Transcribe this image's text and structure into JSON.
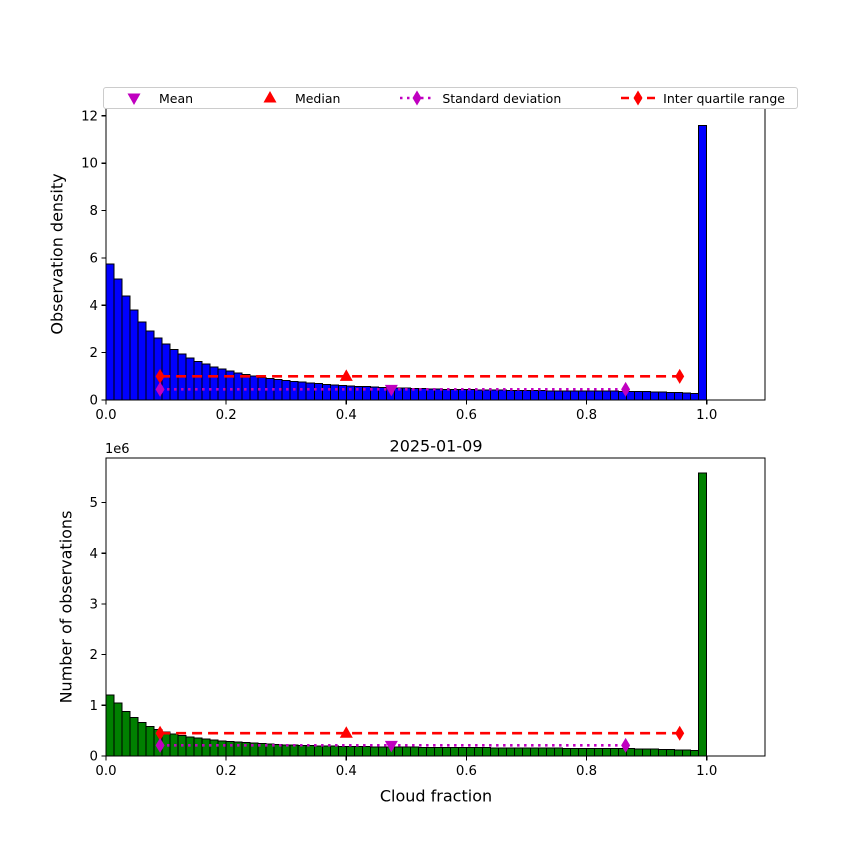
{
  "legend": {
    "items": [
      {
        "key": "mean",
        "label": "Mean",
        "marker": "triangle-down",
        "line": "none",
        "color": "#c000c0"
      },
      {
        "key": "median",
        "label": "Median",
        "marker": "triangle-up",
        "line": "none",
        "color": "#ff0000"
      },
      {
        "key": "std",
        "label": "Standard deviation",
        "marker": "thin-diamond",
        "line": "dotted",
        "color": "#c000c0"
      },
      {
        "key": "iqr",
        "label": "Inter quartile range",
        "marker": "thin-diamond",
        "line": "dashed",
        "color": "#ff0000"
      }
    ]
  },
  "chart_data": [
    {
      "type": "bar",
      "title": "",
      "xlabel": "",
      "ylabel": "Observation density",
      "bar_color": "#0000ff",
      "edge_color": "#000000",
      "bin_start": 0.0,
      "bin_width": 0.0133333,
      "values": [
        5.75,
        5.1,
        4.4,
        3.8,
        3.3,
        2.92,
        2.62,
        2.36,
        2.13,
        1.94,
        1.77,
        1.63,
        1.51,
        1.4,
        1.31,
        1.22,
        1.14,
        1.07,
        1.01,
        0.95,
        0.9,
        0.86,
        0.82,
        0.78,
        0.75,
        0.72,
        0.69,
        0.66,
        0.64,
        0.62,
        0.6,
        0.58,
        0.56,
        0.54,
        0.53,
        0.52,
        0.51,
        0.5,
        0.49,
        0.48,
        0.47,
        0.46,
        0.45,
        0.45,
        0.44,
        0.44,
        0.43,
        0.43,
        0.42,
        0.42,
        0.41,
        0.41,
        0.4,
        0.4,
        0.4,
        0.39,
        0.39,
        0.39,
        0.38,
        0.38,
        0.38,
        0.37,
        0.37,
        0.37,
        0.36,
        0.36,
        0.35,
        0.35,
        0.34,
        0.33,
        0.32,
        0.31,
        0.29,
        0.27,
        11.6
      ],
      "xlim": [
        0,
        1.097
      ],
      "ylim": [
        0,
        12.33
      ],
      "xticks": [
        0.0,
        0.2,
        0.4,
        0.6,
        0.8,
        1.0
      ],
      "xtick_labels": [
        "0.0",
        "0.2",
        "0.4",
        "0.6",
        "0.8",
        "1.0"
      ],
      "yticks": [
        0,
        2,
        4,
        6,
        8,
        10,
        12
      ],
      "ytick_labels": [
        "0",
        "2",
        "4",
        "6",
        "8",
        "10",
        "12"
      ],
      "grid": false,
      "markers": {
        "mean_x": 0.475,
        "median_x": 0.4,
        "std_x_range": [
          0.09,
          0.865
        ],
        "std_y": 0.45,
        "iqr_x_range": [
          0.09,
          0.955
        ],
        "iqr_y": 1.0
      }
    },
    {
      "type": "bar",
      "title": "2025-01-09",
      "xlabel": "Cloud fraction",
      "ylabel": "Number of observations",
      "offset_label": "1e6",
      "bar_color": "#008000",
      "edge_color": "#000000",
      "bin_start": 0.0,
      "bin_width": 0.0133333,
      "values": [
        1.2,
        1.05,
        0.88,
        0.76,
        0.66,
        0.58,
        0.52,
        0.47,
        0.43,
        0.4,
        0.375,
        0.355,
        0.335,
        0.315,
        0.3,
        0.285,
        0.272,
        0.262,
        0.252,
        0.243,
        0.235,
        0.228,
        0.222,
        0.216,
        0.211,
        0.206,
        0.202,
        0.198,
        0.195,
        0.192,
        0.189,
        0.186,
        0.184,
        0.182,
        0.18,
        0.178,
        0.176,
        0.175,
        0.173,
        0.172,
        0.17,
        0.169,
        0.168,
        0.167,
        0.166,
        0.165,
        0.164,
        0.163,
        0.162,
        0.161,
        0.16,
        0.159,
        0.158,
        0.157,
        0.156,
        0.155,
        0.154,
        0.153,
        0.152,
        0.151,
        0.15,
        0.149,
        0.148,
        0.147,
        0.146,
        0.144,
        0.142,
        0.14,
        0.137,
        0.133,
        0.128,
        0.122,
        0.115,
        0.105,
        5.58
      ],
      "xlim": [
        0,
        1.097
      ],
      "ylim": [
        0,
        5.88
      ],
      "xticks": [
        0.0,
        0.2,
        0.4,
        0.6,
        0.8,
        1.0
      ],
      "xtick_labels": [
        "0.0",
        "0.2",
        "0.4",
        "0.6",
        "0.8",
        "1.0"
      ],
      "yticks": [
        0,
        1,
        2,
        3,
        4,
        5
      ],
      "ytick_labels": [
        "0",
        "1",
        "2",
        "3",
        "4",
        "5"
      ],
      "grid": false,
      "markers": {
        "mean_x": 0.475,
        "median_x": 0.4,
        "std_x_range": [
          0.09,
          0.865
        ],
        "std_y": 0.21,
        "iqr_x_range": [
          0.09,
          0.955
        ],
        "iqr_y": 0.45
      }
    }
  ]
}
